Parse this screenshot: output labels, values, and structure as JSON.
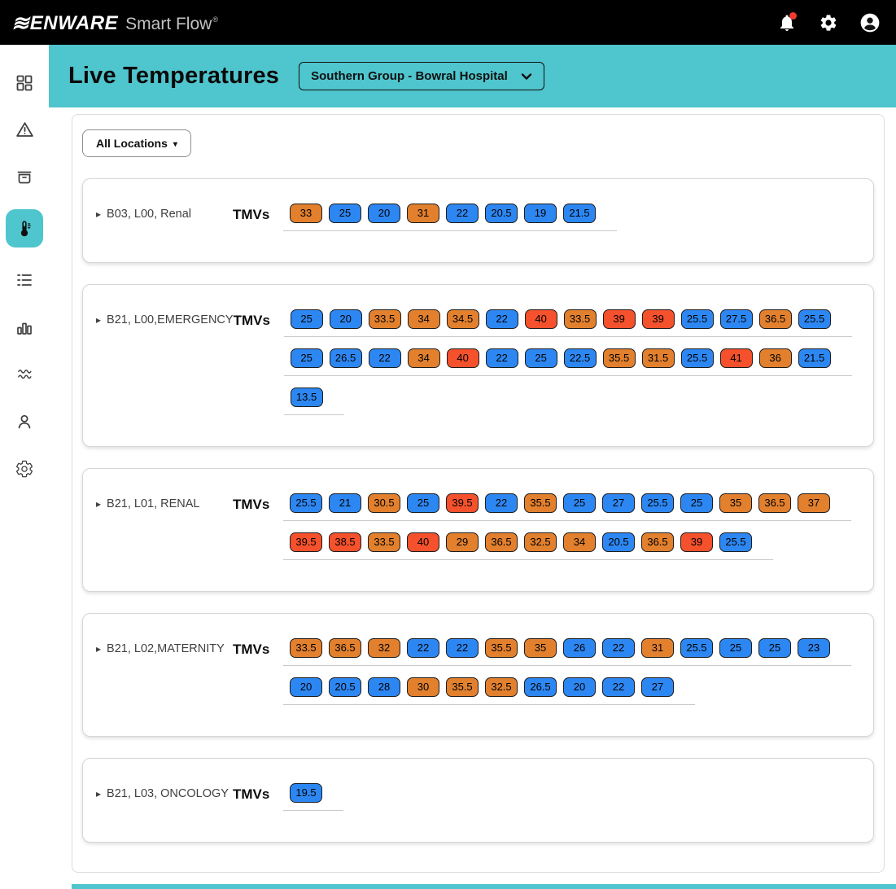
{
  "topbar": {
    "brand_mark": "≋",
    "brand": "ENWARE",
    "product": "Smart Flow",
    "reg": "®",
    "notification_dot": true
  },
  "header": {
    "title": "Live Temperatures",
    "site_selector": "Southern Group - Bowral Hospital"
  },
  "filters": {
    "all_locations_label": "All Locations",
    "caret": "▾"
  },
  "labels": {
    "tmvs": "TMVs",
    "expand_caret": "▸"
  },
  "colors": {
    "teal": "#4fc5cd",
    "chip_blue": "#2d87f2",
    "chip_orange": "#e2802e",
    "chip_red": "#f4512c",
    "notification_red": "#f23b2f"
  },
  "sidebar": {
    "items": [
      {
        "id": "dashboard",
        "icon": "dashboard-icon",
        "active": false
      },
      {
        "id": "alerts",
        "icon": "warning-triangle-icon",
        "active": false
      },
      {
        "id": "archive",
        "icon": "archive-box-icon",
        "active": false
      },
      {
        "id": "live-temperatures",
        "icon": "thermometer-icon",
        "active": true
      },
      {
        "id": "checklist",
        "icon": "checklist-icon",
        "active": false
      },
      {
        "id": "reports",
        "icon": "bar-chart-icon",
        "active": false
      },
      {
        "id": "trends",
        "icon": "trend-lines-icon",
        "active": false
      },
      {
        "id": "users",
        "icon": "user-icon",
        "active": false
      },
      {
        "id": "settings",
        "icon": "gear-icon",
        "active": false
      }
    ]
  },
  "locations": [
    {
      "label": "B03, L00, Renal",
      "rows": [
        [
          {
            "v": "33",
            "c": "orange"
          },
          {
            "v": "25",
            "c": "blue"
          },
          {
            "v": "20",
            "c": "blue"
          },
          {
            "v": "31",
            "c": "orange"
          },
          {
            "v": "22",
            "c": "blue"
          },
          {
            "v": "20.5",
            "c": "blue"
          },
          {
            "v": "19",
            "c": "blue"
          },
          {
            "v": "21.5",
            "c": "blue"
          }
        ]
      ]
    },
    {
      "label": "B21, L00,EMERGENCY",
      "rows": [
        [
          {
            "v": "25",
            "c": "blue"
          },
          {
            "v": "20",
            "c": "blue"
          },
          {
            "v": "33.5",
            "c": "orange"
          },
          {
            "v": "34",
            "c": "orange"
          },
          {
            "v": "34.5",
            "c": "orange"
          },
          {
            "v": "22",
            "c": "blue"
          },
          {
            "v": "40",
            "c": "red"
          },
          {
            "v": "33.5",
            "c": "orange"
          },
          {
            "v": "39",
            "c": "red"
          },
          {
            "v": "39",
            "c": "red"
          },
          {
            "v": "25.5",
            "c": "blue"
          },
          {
            "v": "27.5",
            "c": "blue"
          },
          {
            "v": "36.5",
            "c": "orange"
          },
          {
            "v": "25.5",
            "c": "blue"
          }
        ],
        [
          {
            "v": "25",
            "c": "blue"
          },
          {
            "v": "26.5",
            "c": "blue"
          },
          {
            "v": "22",
            "c": "blue"
          },
          {
            "v": "34",
            "c": "orange"
          },
          {
            "v": "40",
            "c": "red"
          },
          {
            "v": "22",
            "c": "blue"
          },
          {
            "v": "25",
            "c": "blue"
          },
          {
            "v": "22.5",
            "c": "blue"
          },
          {
            "v": "35.5",
            "c": "orange"
          },
          {
            "v": "31.5",
            "c": "orange"
          },
          {
            "v": "25.5",
            "c": "blue"
          },
          {
            "v": "41",
            "c": "red"
          },
          {
            "v": "36",
            "c": "orange"
          },
          {
            "v": "21.5",
            "c": "blue"
          }
        ],
        [
          {
            "v": "13.5",
            "c": "blue"
          }
        ]
      ]
    },
    {
      "label": "B21, L01, RENAL",
      "rows": [
        [
          {
            "v": "25.5",
            "c": "blue"
          },
          {
            "v": "21",
            "c": "blue"
          },
          {
            "v": "30.5",
            "c": "orange"
          },
          {
            "v": "25",
            "c": "blue"
          },
          {
            "v": "39.5",
            "c": "red"
          },
          {
            "v": "22",
            "c": "blue"
          },
          {
            "v": "35.5",
            "c": "orange"
          },
          {
            "v": "25",
            "c": "blue"
          },
          {
            "v": "27",
            "c": "blue"
          },
          {
            "v": "25.5",
            "c": "blue"
          },
          {
            "v": "25",
            "c": "blue"
          },
          {
            "v": "35",
            "c": "orange"
          },
          {
            "v": "36.5",
            "c": "orange"
          },
          {
            "v": "37",
            "c": "orange"
          }
        ],
        [
          {
            "v": "39.5",
            "c": "red"
          },
          {
            "v": "38.5",
            "c": "red"
          },
          {
            "v": "33.5",
            "c": "orange"
          },
          {
            "v": "40",
            "c": "red"
          },
          {
            "v": "29",
            "c": "orange"
          },
          {
            "v": "36.5",
            "c": "orange"
          },
          {
            "v": "32.5",
            "c": "orange"
          },
          {
            "v": "34",
            "c": "orange"
          },
          {
            "v": "20.5",
            "c": "blue"
          },
          {
            "v": "36.5",
            "c": "orange"
          },
          {
            "v": "39",
            "c": "red"
          },
          {
            "v": "25.5",
            "c": "blue"
          }
        ]
      ]
    },
    {
      "label": "B21, L02,MATERNITY",
      "rows": [
        [
          {
            "v": "33.5",
            "c": "orange"
          },
          {
            "v": "36.5",
            "c": "orange"
          },
          {
            "v": "32",
            "c": "orange"
          },
          {
            "v": "22",
            "c": "blue"
          },
          {
            "v": "22",
            "c": "blue"
          },
          {
            "v": "35.5",
            "c": "orange"
          },
          {
            "v": "35",
            "c": "orange"
          },
          {
            "v": "26",
            "c": "blue"
          },
          {
            "v": "22",
            "c": "blue"
          },
          {
            "v": "31",
            "c": "orange"
          },
          {
            "v": "25.5",
            "c": "blue"
          },
          {
            "v": "25",
            "c": "blue"
          },
          {
            "v": "25",
            "c": "blue"
          },
          {
            "v": "23",
            "c": "blue"
          }
        ],
        [
          {
            "v": "20",
            "c": "blue"
          },
          {
            "v": "20.5",
            "c": "blue"
          },
          {
            "v": "28",
            "c": "blue"
          },
          {
            "v": "30",
            "c": "orange"
          },
          {
            "v": "35.5",
            "c": "orange"
          },
          {
            "v": "32.5",
            "c": "orange"
          },
          {
            "v": "26.5",
            "c": "blue"
          },
          {
            "v": "20",
            "c": "blue"
          },
          {
            "v": "22",
            "c": "blue"
          },
          {
            "v": "27",
            "c": "blue"
          }
        ]
      ]
    },
    {
      "label": "B21, L03, ONCOLOGY",
      "rows": [
        [
          {
            "v": "19.5",
            "c": "blue"
          }
        ]
      ]
    }
  ]
}
